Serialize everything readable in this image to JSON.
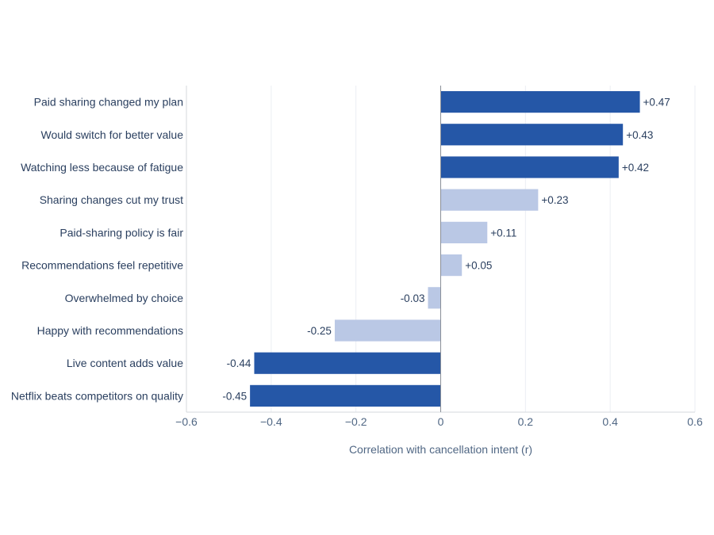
{
  "chart_data": {
    "type": "bar",
    "orientation": "horizontal",
    "title": "",
    "xlabel": "Correlation with cancellation intent (r)",
    "ylabel": "",
    "xlim": [
      -0.6,
      0.6
    ],
    "xticks": [
      -0.6,
      -0.4,
      -0.2,
      0,
      0.2,
      0.4,
      0.6
    ],
    "xtick_labels": [
      "−0.6",
      "−0.4",
      "−0.2",
      "0",
      "0.2",
      "0.4",
      "0.6"
    ],
    "grid": true,
    "categories": [
      "Paid sharing changed my plan",
      "Would switch for better value",
      "Watching less because of fatigue",
      "Sharing changes cut my trust",
      "Paid-sharing policy is fair",
      "Recommendations feel repetitive",
      "Overwhelmed by choice",
      "Happy with recommendations",
      "Live content adds value",
      "Netflix beats competitors on quality"
    ],
    "values": [
      0.47,
      0.43,
      0.42,
      0.23,
      0.11,
      0.05,
      -0.03,
      -0.25,
      -0.44,
      -0.45
    ],
    "data_labels": [
      "+0.47",
      "+0.43",
      "+0.42",
      "+0.23",
      "+0.11",
      "+0.05",
      "-0.03",
      "-0.25",
      "-0.44",
      "-0.45"
    ],
    "strong": [
      true,
      true,
      true,
      false,
      false,
      false,
      false,
      false,
      true,
      true
    ],
    "colors": {
      "strong": "#2557a7",
      "weak": "#bac8e5",
      "grid": "#ebeef3",
      "zero_line": "#8a8f98",
      "axis_line": "#d4d8de"
    }
  }
}
